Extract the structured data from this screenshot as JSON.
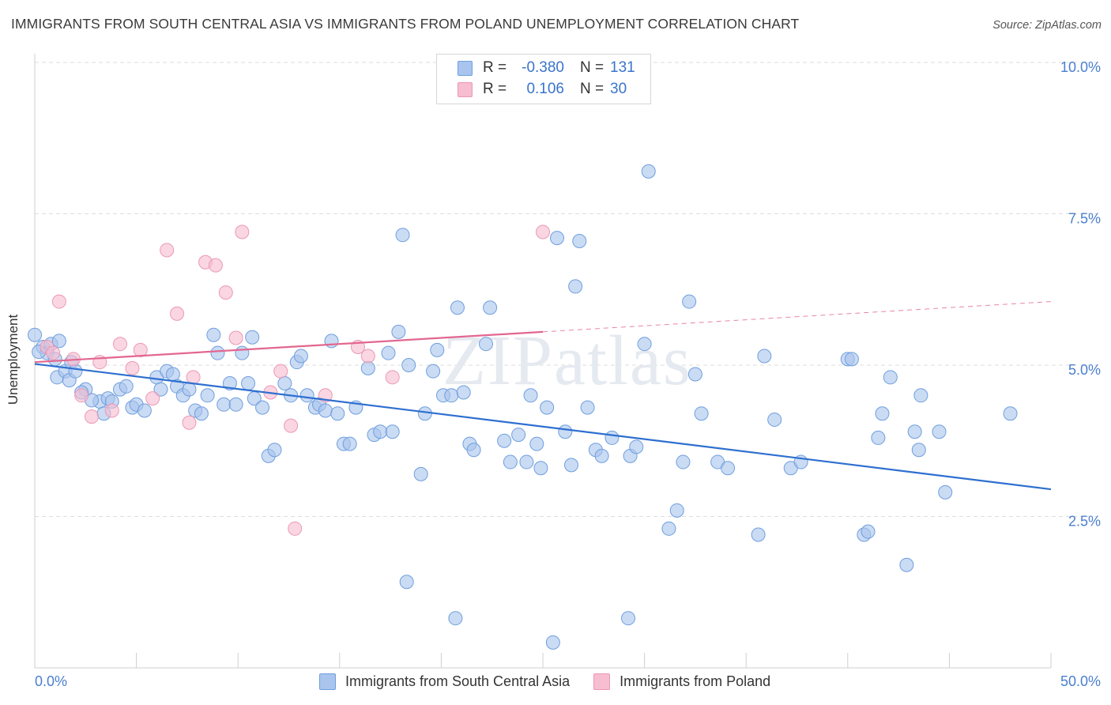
{
  "header": {
    "title": "IMMIGRANTS FROM SOUTH CENTRAL ASIA VS IMMIGRANTS FROM POLAND UNEMPLOYMENT CORRELATION CHART",
    "source": "Source: ZipAtlas.com"
  },
  "watermark": "ZIPatlas",
  "legend_top": {
    "rows": [
      {
        "r_label": "R =",
        "r_value": "-0.380",
        "n_label": "N =",
        "n_value": "131"
      },
      {
        "r_label": "R =",
        "r_value": "0.106",
        "n_label": "N =",
        "n_value": "30"
      }
    ]
  },
  "legend_bottom": {
    "items": [
      "Immigrants from South Central Asia",
      "Immigrants from Poland"
    ]
  },
  "colors": {
    "blue_fill": "#a9c5ee",
    "blue_stroke": "#6f9fdd",
    "blue_line": "#2e6fd0",
    "pink_fill": "#f7bdd0",
    "pink_stroke": "#ec98b4",
    "pink_line": "#e2678f",
    "axis_text": "#4a7fcf",
    "grid": "#dddddd"
  },
  "chart_data": {
    "type": "scatter",
    "title": "IMMIGRANTS FROM SOUTH CENTRAL ASIA VS IMMIGRANTS FROM POLAND UNEMPLOYMENT CORRELATION CHART",
    "xlabel": "",
    "ylabel": "Unemployment",
    "xlim": [
      0,
      50
    ],
    "ylim": [
      0,
      10.5
    ],
    "x_tick_labels": [
      "0.0%",
      "50.0%"
    ],
    "y_ticks": [
      2.5,
      5.0,
      7.5,
      10.0
    ],
    "y_tick_labels": [
      "2.5%",
      "5.0%",
      "7.5%",
      "10.0%"
    ],
    "grid": true,
    "legend_placement": "top-center",
    "series": [
      {
        "name": "Immigrants from South Central Asia",
        "color": "blue",
        "R": -0.38,
        "N": 131,
        "trend": {
          "x": [
            0,
            50
          ],
          "y": [
            5.02,
            2.95
          ]
        },
        "points": [
          [
            0.0,
            5.5
          ],
          [
            0.4,
            5.3
          ],
          [
            0.6,
            5.2
          ],
          [
            0.8,
            5.35
          ],
          [
            1.0,
            5.1
          ],
          [
            1.2,
            5.4
          ],
          [
            1.1,
            4.8
          ],
          [
            1.5,
            4.9
          ],
          [
            1.7,
            4.75
          ],
          [
            1.8,
            5.05
          ],
          [
            2.0,
            4.9
          ],
          [
            2.5,
            4.6
          ],
          [
            2.3,
            4.55
          ],
          [
            3.2,
            4.4
          ],
          [
            3.4,
            4.2
          ],
          [
            3.6,
            4.45
          ],
          [
            3.8,
            4.4
          ],
          [
            4.2,
            4.6
          ],
          [
            4.5,
            4.65
          ],
          [
            4.8,
            4.3
          ],
          [
            5.0,
            4.35
          ],
          [
            5.4,
            4.25
          ],
          [
            6.0,
            4.8
          ],
          [
            6.2,
            4.6
          ],
          [
            6.5,
            4.9
          ],
          [
            6.8,
            4.85
          ],
          [
            7.0,
            4.65
          ],
          [
            7.3,
            4.5
          ],
          [
            7.6,
            4.6
          ],
          [
            7.9,
            4.25
          ],
          [
            8.2,
            4.2
          ],
          [
            8.5,
            4.5
          ],
          [
            8.8,
            5.5
          ],
          [
            9.0,
            5.2
          ],
          [
            9.3,
            4.35
          ],
          [
            9.6,
            4.7
          ],
          [
            9.9,
            4.35
          ],
          [
            10.2,
            5.2
          ],
          [
            10.5,
            4.7
          ],
          [
            10.8,
            4.45
          ],
          [
            11.2,
            4.3
          ],
          [
            11.5,
            3.5
          ],
          [
            11.8,
            3.6
          ],
          [
            12.3,
            4.7
          ],
          [
            12.6,
            4.5
          ],
          [
            12.9,
            5.05
          ],
          [
            13.1,
            5.15
          ],
          [
            13.4,
            4.5
          ],
          [
            13.8,
            4.3
          ],
          [
            14.0,
            4.35
          ],
          [
            14.3,
            4.25
          ],
          [
            14.6,
            5.4
          ],
          [
            14.9,
            4.2
          ],
          [
            15.2,
            3.7
          ],
          [
            15.5,
            3.7
          ],
          [
            15.8,
            4.3
          ],
          [
            16.4,
            4.95
          ],
          [
            16.7,
            3.85
          ],
          [
            17.0,
            3.9
          ],
          [
            17.4,
            5.2
          ],
          [
            17.6,
            3.9
          ],
          [
            17.9,
            5.55
          ],
          [
            18.1,
            7.15
          ],
          [
            18.4,
            5.0
          ],
          [
            19.0,
            3.2
          ],
          [
            19.2,
            4.2
          ],
          [
            19.6,
            4.9
          ],
          [
            19.8,
            5.25
          ],
          [
            20.1,
            4.5
          ],
          [
            20.5,
            4.5
          ],
          [
            20.8,
            5.95
          ],
          [
            21.1,
            4.55
          ],
          [
            21.4,
            3.7
          ],
          [
            21.6,
            3.6
          ],
          [
            22.2,
            5.35
          ],
          [
            22.4,
            5.95
          ],
          [
            23.1,
            3.75
          ],
          [
            23.4,
            3.4
          ],
          [
            23.8,
            3.85
          ],
          [
            24.2,
            3.4
          ],
          [
            24.4,
            4.5
          ],
          [
            24.7,
            3.7
          ],
          [
            24.9,
            3.3
          ],
          [
            25.2,
            4.3
          ],
          [
            25.7,
            7.1
          ],
          [
            26.1,
            3.9
          ],
          [
            26.4,
            3.35
          ],
          [
            26.6,
            6.3
          ],
          [
            26.8,
            7.05
          ],
          [
            27.2,
            4.3
          ],
          [
            27.6,
            3.6
          ],
          [
            27.9,
            3.5
          ],
          [
            28.4,
            3.8
          ],
          [
            29.3,
            3.5
          ],
          [
            29.6,
            3.65
          ],
          [
            30.0,
            5.35
          ],
          [
            30.2,
            8.2
          ],
          [
            31.2,
            2.3
          ],
          [
            31.6,
            2.6
          ],
          [
            31.9,
            3.4
          ],
          [
            32.2,
            6.05
          ],
          [
            32.5,
            4.85
          ],
          [
            32.8,
            4.2
          ],
          [
            33.6,
            3.4
          ],
          [
            34.1,
            3.3
          ],
          [
            35.6,
            2.2
          ],
          [
            35.9,
            5.15
          ],
          [
            36.4,
            4.1
          ],
          [
            37.2,
            3.3
          ],
          [
            37.7,
            3.4
          ],
          [
            40.0,
            5.1
          ],
          [
            40.2,
            5.1
          ],
          [
            40.8,
            2.2
          ],
          [
            41.0,
            2.25
          ],
          [
            41.5,
            3.8
          ],
          [
            41.7,
            4.2
          ],
          [
            42.1,
            4.8
          ],
          [
            42.9,
            1.7
          ],
          [
            43.3,
            3.9
          ],
          [
            43.5,
            3.6
          ],
          [
            43.6,
            4.5
          ],
          [
            44.5,
            3.9
          ],
          [
            44.8,
            2.9
          ],
          [
            48.0,
            4.2
          ],
          [
            18.3,
            1.42
          ],
          [
            20.7,
            0.82
          ],
          [
            25.5,
            0.42
          ],
          [
            29.2,
            0.82
          ],
          [
            0.2,
            5.22
          ],
          [
            2.8,
            4.42
          ],
          [
            10.7,
            5.46
          ]
        ]
      },
      {
        "name": "Immigrants from Poland",
        "color": "pink",
        "R": 0.106,
        "N": 30,
        "trend": {
          "x": [
            0,
            25
          ],
          "y": [
            5.05,
            5.55
          ]
        },
        "trend_extension": {
          "x": [
            25,
            50
          ],
          "y": [
            5.55,
            6.05
          ]
        },
        "points": [
          [
            0.6,
            5.3
          ],
          [
            0.9,
            5.2
          ],
          [
            1.2,
            6.05
          ],
          [
            1.9,
            5.1
          ],
          [
            2.3,
            4.5
          ],
          [
            2.8,
            4.15
          ],
          [
            3.2,
            5.05
          ],
          [
            3.8,
            4.25
          ],
          [
            4.2,
            5.35
          ],
          [
            4.8,
            4.95
          ],
          [
            5.2,
            5.25
          ],
          [
            5.8,
            4.45
          ],
          [
            6.5,
            6.9
          ],
          [
            7.0,
            5.85
          ],
          [
            7.6,
            4.05
          ],
          [
            7.8,
            4.8
          ],
          [
            8.4,
            6.7
          ],
          [
            8.9,
            6.65
          ],
          [
            9.4,
            6.2
          ],
          [
            9.9,
            5.45
          ],
          [
            10.2,
            7.2
          ],
          [
            11.6,
            4.55
          ],
          [
            12.1,
            4.9
          ],
          [
            12.8,
            2.3
          ],
          [
            12.6,
            4.0
          ],
          [
            14.3,
            4.5
          ],
          [
            15.9,
            5.3
          ],
          [
            16.4,
            5.15
          ],
          [
            17.6,
            4.8
          ],
          [
            25.0,
            7.2
          ]
        ]
      }
    ]
  }
}
